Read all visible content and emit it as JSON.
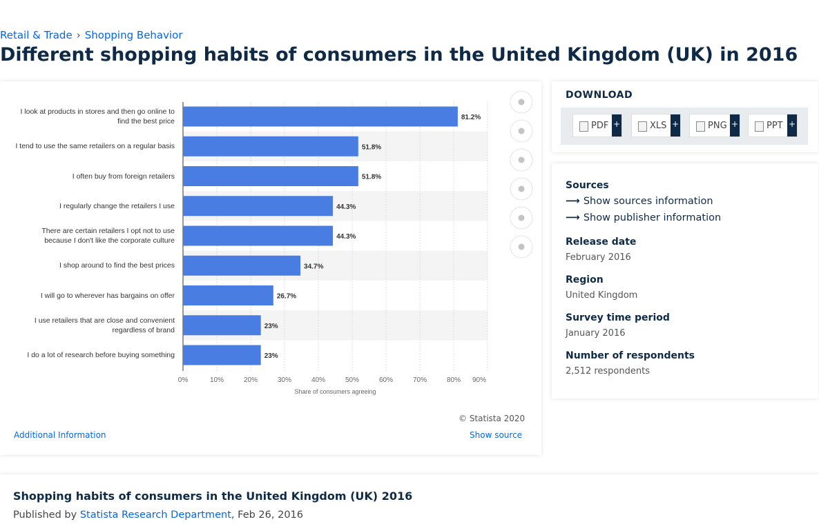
{
  "breadcrumb": [
    "Retail & Trade",
    "Shopping Behavior"
  ],
  "title": "Different shopping habits of consumers in the United Kingdom (UK) in 2016",
  "chart_data": {
    "type": "bar",
    "orientation": "horizontal",
    "categories": [
      "I look at products in stores and then go online to find the best price",
      "I tend to use the same retailers on a regular basis",
      "I often buy from foreign retailers",
      "I regularly change the retailers I use",
      "There are certain retailers I opt not to use because I don't like the corporate culture",
      "I shop around to find the best prices",
      "I will go to wherever has bargains on offer",
      "I use retailers that are close and convenient regardless of brand",
      "I do a lot of research before buying something"
    ],
    "values": [
      81.2,
      51.8,
      51.8,
      44.3,
      44.3,
      34.7,
      26.7,
      23,
      23
    ],
    "value_labels": [
      "81.2%",
      "51.8%",
      "51.8%",
      "44.3%",
      "44.3%",
      "34.7%",
      "26.7%",
      "23%",
      "23%"
    ],
    "color": "#4a7de2",
    "xlim": [
      0,
      90
    ],
    "xticks": [
      {
        "value": 0,
        "label": "0%"
      },
      {
        "value": 10,
        "label": "10%"
      },
      {
        "value": 20,
        "label": "20%"
      },
      {
        "value": 30,
        "label": "30%"
      },
      {
        "value": 40,
        "label": "40%"
      },
      {
        "value": 50,
        "label": "50%"
      },
      {
        "value": 60,
        "label": "60%"
      },
      {
        "value": 70,
        "label": "70%"
      },
      {
        "value": 80,
        "label": "80%"
      },
      {
        "value": 90,
        "label": "90%"
      }
    ],
    "x_label": "Share of consumers agreeing",
    "grid": true,
    "credit": "© Statista 2020"
  },
  "chart_footer": {
    "additional": "Additional Information",
    "source": "Show source"
  },
  "download": {
    "title": "DOWNLOAD",
    "formats": [
      "PDF",
      "XLS",
      "PNG",
      "PPT"
    ]
  },
  "details": {
    "sources_title": "Sources",
    "links": [
      "Show sources information",
      "Show publisher information"
    ],
    "items": [
      {
        "label": "Release date",
        "value": "February 2016"
      },
      {
        "label": "Region",
        "value": "United Kingdom"
      },
      {
        "label": "Survey time period",
        "value": "January 2016"
      },
      {
        "label": "Number of respondents",
        "value": "2,512 respondents"
      }
    ]
  },
  "related": {
    "title": "Shopping habits of consumers in the United Kingdom (UK) 2016",
    "published_by": "Published by",
    "author": "Statista Research Department",
    "date": "Feb 26, 2016"
  }
}
